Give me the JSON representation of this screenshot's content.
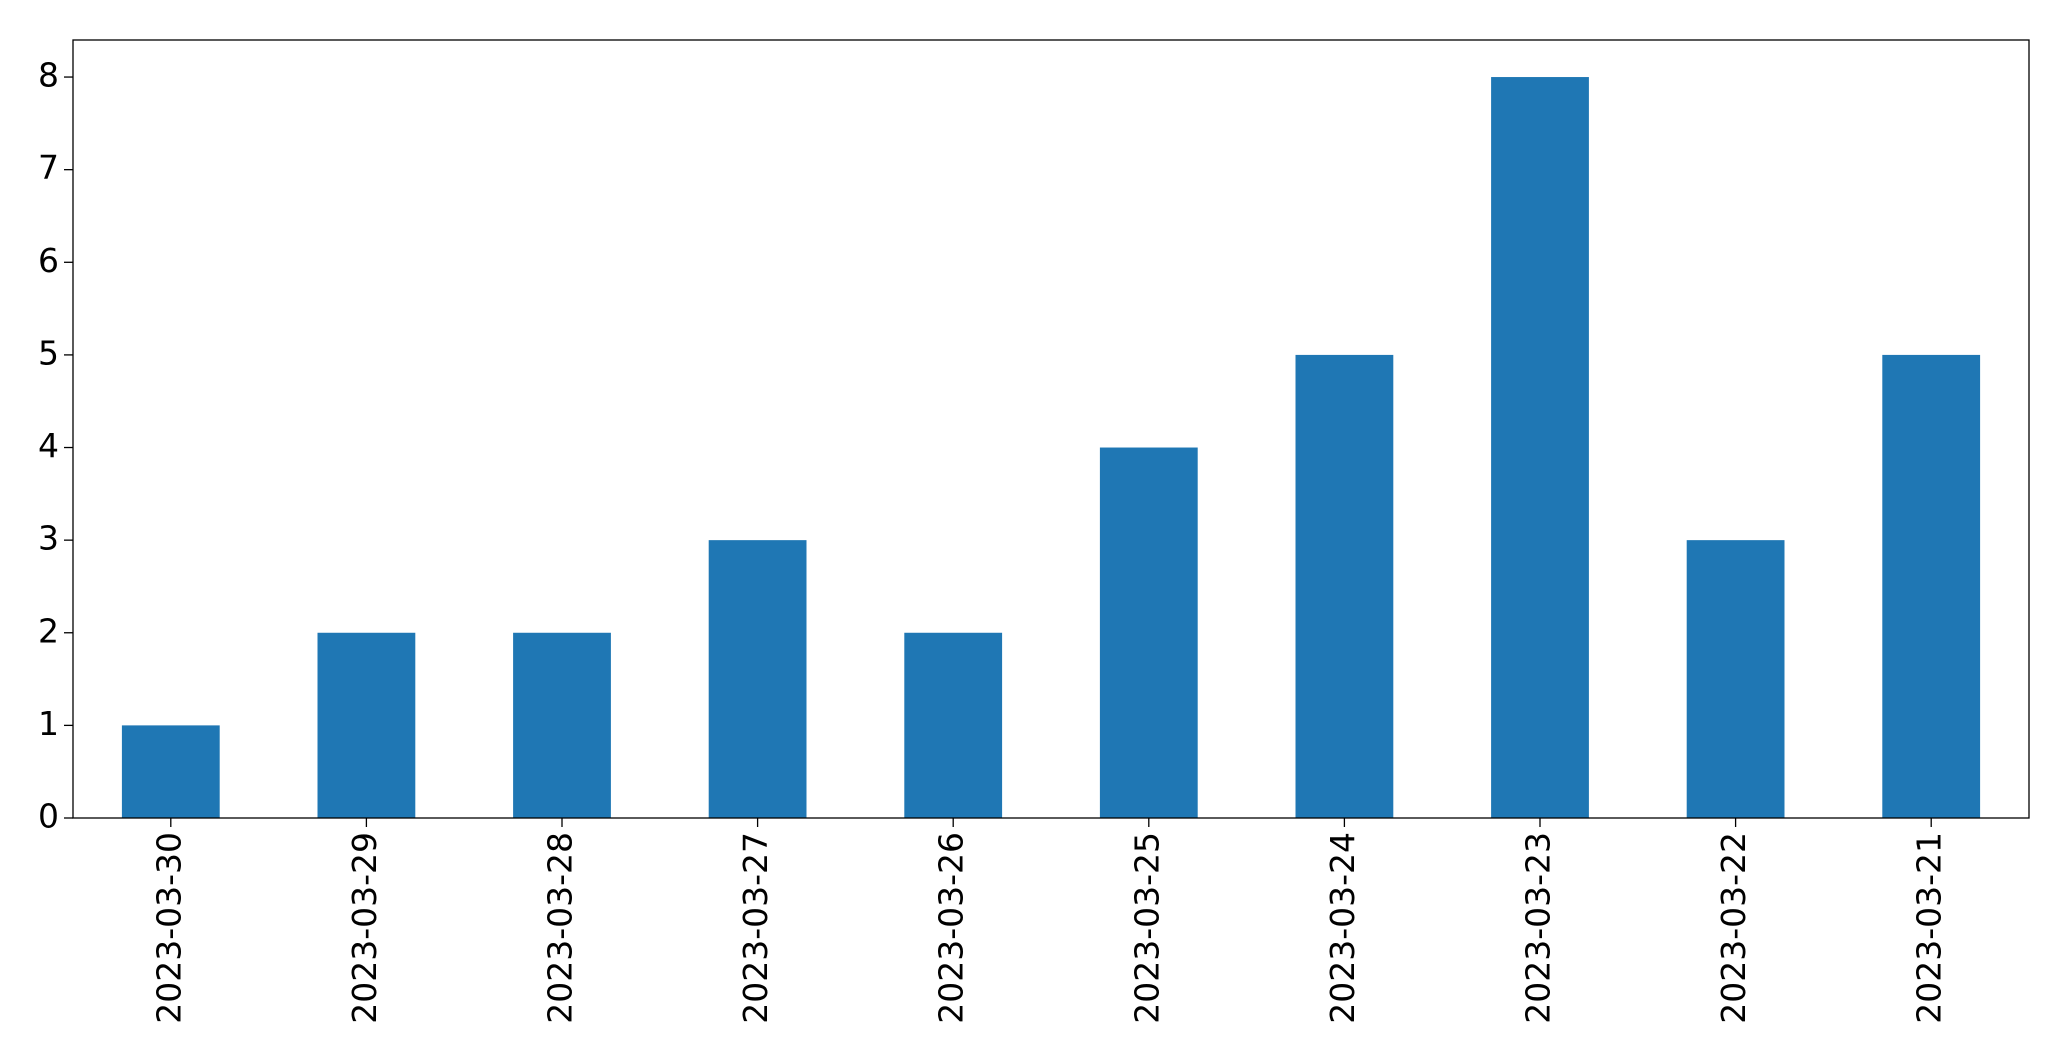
{
  "chart_data": {
    "type": "bar",
    "categories": [
      "2023-03-30",
      "2023-03-29",
      "2023-03-28",
      "2023-03-27",
      "2023-03-26",
      "2023-03-25",
      "2023-03-24",
      "2023-03-23",
      "2023-03-22",
      "2023-03-21"
    ],
    "values": [
      1,
      2,
      2,
      3,
      2,
      4,
      5,
      8,
      3,
      5
    ],
    "color": "#1f77b4",
    "ylim": [
      0,
      8.4
    ],
    "yticks": [
      0,
      1,
      2,
      3,
      4,
      5,
      6,
      7,
      8
    ],
    "grid": false
  }
}
